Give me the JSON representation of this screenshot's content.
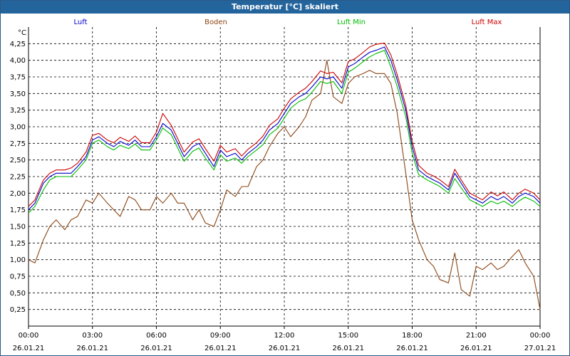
{
  "window": {
    "title": "Temperatur [°C] skaliert"
  },
  "chart_data": {
    "type": "line",
    "unit_label": "°C",
    "ylim": [
      0,
      4.5
    ],
    "y_ticks": [
      "4,25",
      "4,00",
      "3,75",
      "3,50",
      "3,25",
      "3,00",
      "2,75",
      "2,50",
      "2,25",
      "2,00",
      "1,75",
      "1,50",
      "1,25",
      "1,00",
      "0,75",
      "0,50",
      "0,25"
    ],
    "y_tick_values": [
      4.25,
      4.0,
      3.75,
      3.5,
      3.25,
      3.0,
      2.75,
      2.5,
      2.25,
      2.0,
      1.75,
      1.5,
      1.25,
      1.0,
      0.75,
      0.5,
      0.25
    ],
    "xlim": [
      0,
      24
    ],
    "x_ticks": [
      {
        "x": 0,
        "time": "00:00",
        "date": "26.01.21"
      },
      {
        "x": 3,
        "time": "03:00",
        "date": "26.01.21"
      },
      {
        "x": 6,
        "time": "06:00",
        "date": "26.01.21"
      },
      {
        "x": 9,
        "time": "09:00",
        "date": "26.01.21"
      },
      {
        "x": 12,
        "time": "12:00",
        "date": "26.01.21"
      },
      {
        "x": 15,
        "time": "15:00",
        "date": "26.01.21"
      },
      {
        "x": 18,
        "time": "18:00",
        "date": "26.01.21"
      },
      {
        "x": 21,
        "time": "21:00",
        "date": "26.01.21"
      },
      {
        "x": 24,
        "time": "00:00",
        "date": "27.01.21"
      }
    ],
    "grid": true,
    "legend_position": "top",
    "series": [
      {
        "name": "Luft",
        "color": "#0000cc",
        "points": [
          [
            0.0,
            1.75
          ],
          [
            0.3,
            1.85
          ],
          [
            0.7,
            2.15
          ],
          [
            1.0,
            2.25
          ],
          [
            1.3,
            2.3
          ],
          [
            1.7,
            2.3
          ],
          [
            2.0,
            2.3
          ],
          [
            2.3,
            2.4
          ],
          [
            2.7,
            2.55
          ],
          [
            3.0,
            2.8
          ],
          [
            3.3,
            2.85
          ],
          [
            3.7,
            2.75
          ],
          [
            4.0,
            2.7
          ],
          [
            4.3,
            2.78
          ],
          [
            4.7,
            2.72
          ],
          [
            5.0,
            2.8
          ],
          [
            5.3,
            2.7
          ],
          [
            5.7,
            2.7
          ],
          [
            6.0,
            2.85
          ],
          [
            6.3,
            3.05
          ],
          [
            6.7,
            2.95
          ],
          [
            7.0,
            2.75
          ],
          [
            7.3,
            2.55
          ],
          [
            7.7,
            2.7
          ],
          [
            8.0,
            2.75
          ],
          [
            8.3,
            2.6
          ],
          [
            8.7,
            2.4
          ],
          [
            9.0,
            2.65
          ],
          [
            9.3,
            2.55
          ],
          [
            9.7,
            2.6
          ],
          [
            10.0,
            2.5
          ],
          [
            10.3,
            2.6
          ],
          [
            10.7,
            2.7
          ],
          [
            11.0,
            2.8
          ],
          [
            11.3,
            2.95
          ],
          [
            11.7,
            3.05
          ],
          [
            12.0,
            3.2
          ],
          [
            12.3,
            3.35
          ],
          [
            12.7,
            3.45
          ],
          [
            13.0,
            3.5
          ],
          [
            13.3,
            3.6
          ],
          [
            13.7,
            3.75
          ],
          [
            14.0,
            3.72
          ],
          [
            14.3,
            3.75
          ],
          [
            14.7,
            3.58
          ],
          [
            15.0,
            3.9
          ],
          [
            15.3,
            3.95
          ],
          [
            15.7,
            4.05
          ],
          [
            16.0,
            4.12
          ],
          [
            16.3,
            4.15
          ],
          [
            16.7,
            4.2
          ],
          [
            17.0,
            4.0
          ],
          [
            17.3,
            3.7
          ],
          [
            17.7,
            3.25
          ],
          [
            18.0,
            2.7
          ],
          [
            18.3,
            2.35
          ],
          [
            18.7,
            2.25
          ],
          [
            19.0,
            2.2
          ],
          [
            19.3,
            2.15
          ],
          [
            19.7,
            2.05
          ],
          [
            20.0,
            2.3
          ],
          [
            20.3,
            2.15
          ],
          [
            20.7,
            1.95
          ],
          [
            21.0,
            1.9
          ],
          [
            21.3,
            1.85
          ],
          [
            21.7,
            1.95
          ],
          [
            22.0,
            1.9
          ],
          [
            22.3,
            1.95
          ],
          [
            22.7,
            1.85
          ],
          [
            23.0,
            1.95
          ],
          [
            23.3,
            2.0
          ],
          [
            23.7,
            1.95
          ],
          [
            24.0,
            1.85
          ]
        ]
      },
      {
        "name": "Boden",
        "color": "#8b4513",
        "points": [
          [
            0.0,
            1.0
          ],
          [
            0.3,
            0.95
          ],
          [
            0.7,
            1.3
          ],
          [
            1.0,
            1.5
          ],
          [
            1.3,
            1.6
          ],
          [
            1.7,
            1.45
          ],
          [
            2.0,
            1.6
          ],
          [
            2.3,
            1.65
          ],
          [
            2.7,
            1.9
          ],
          [
            3.0,
            1.85
          ],
          [
            3.3,
            2.0
          ],
          [
            3.7,
            1.85
          ],
          [
            4.0,
            1.75
          ],
          [
            4.3,
            1.65
          ],
          [
            4.7,
            1.95
          ],
          [
            5.0,
            1.9
          ],
          [
            5.3,
            1.75
          ],
          [
            5.7,
            1.75
          ],
          [
            6.0,
            1.95
          ],
          [
            6.3,
            1.85
          ],
          [
            6.7,
            2.0
          ],
          [
            7.0,
            1.85
          ],
          [
            7.3,
            1.85
          ],
          [
            7.7,
            1.6
          ],
          [
            8.0,
            1.75
          ],
          [
            8.3,
            1.55
          ],
          [
            8.7,
            1.5
          ],
          [
            9.0,
            1.75
          ],
          [
            9.3,
            2.05
          ],
          [
            9.7,
            1.95
          ],
          [
            10.0,
            2.1
          ],
          [
            10.3,
            2.1
          ],
          [
            10.7,
            2.4
          ],
          [
            11.0,
            2.5
          ],
          [
            11.3,
            2.7
          ],
          [
            11.7,
            2.9
          ],
          [
            12.0,
            3.0
          ],
          [
            12.3,
            2.85
          ],
          [
            12.7,
            3.0
          ],
          [
            13.0,
            3.15
          ],
          [
            13.3,
            3.4
          ],
          [
            13.7,
            3.5
          ],
          [
            14.0,
            4.0
          ],
          [
            14.3,
            3.45
          ],
          [
            14.7,
            3.35
          ],
          [
            15.0,
            3.65
          ],
          [
            15.3,
            3.75
          ],
          [
            15.7,
            3.8
          ],
          [
            16.0,
            3.85
          ],
          [
            16.3,
            3.8
          ],
          [
            16.7,
            3.8
          ],
          [
            17.0,
            3.65
          ],
          [
            17.3,
            3.2
          ],
          [
            17.7,
            2.3
          ],
          [
            18.0,
            1.6
          ],
          [
            18.3,
            1.3
          ],
          [
            18.7,
            1.0
          ],
          [
            19.0,
            0.9
          ],
          [
            19.3,
            0.7
          ],
          [
            19.7,
            0.65
          ],
          [
            20.0,
            1.1
          ],
          [
            20.3,
            0.55
          ],
          [
            20.7,
            0.45
          ],
          [
            21.0,
            0.9
          ],
          [
            21.3,
            0.85
          ],
          [
            21.7,
            0.95
          ],
          [
            22.0,
            0.85
          ],
          [
            22.3,
            0.9
          ],
          [
            22.7,
            1.05
          ],
          [
            23.0,
            1.15
          ],
          [
            23.3,
            0.95
          ],
          [
            23.7,
            0.75
          ],
          [
            24.0,
            0.25
          ]
        ]
      },
      {
        "name": "Luft Min",
        "color": "#00bb00",
        "points": [
          [
            0.0,
            1.7
          ],
          [
            0.3,
            1.8
          ],
          [
            0.7,
            2.05
          ],
          [
            1.0,
            2.2
          ],
          [
            1.3,
            2.25
          ],
          [
            1.7,
            2.25
          ],
          [
            2.0,
            2.25
          ],
          [
            2.3,
            2.35
          ],
          [
            2.7,
            2.5
          ],
          [
            3.0,
            2.75
          ],
          [
            3.3,
            2.8
          ],
          [
            3.7,
            2.7
          ],
          [
            4.0,
            2.65
          ],
          [
            4.3,
            2.72
          ],
          [
            4.7,
            2.67
          ],
          [
            5.0,
            2.74
          ],
          [
            5.3,
            2.65
          ],
          [
            5.7,
            2.65
          ],
          [
            6.0,
            2.8
          ],
          [
            6.3,
            2.98
          ],
          [
            6.7,
            2.88
          ],
          [
            7.0,
            2.68
          ],
          [
            7.3,
            2.48
          ],
          [
            7.7,
            2.63
          ],
          [
            8.0,
            2.68
          ],
          [
            8.3,
            2.53
          ],
          [
            8.7,
            2.35
          ],
          [
            9.0,
            2.58
          ],
          [
            9.3,
            2.48
          ],
          [
            9.7,
            2.53
          ],
          [
            10.0,
            2.45
          ],
          [
            10.3,
            2.55
          ],
          [
            10.7,
            2.65
          ],
          [
            11.0,
            2.73
          ],
          [
            11.3,
            2.88
          ],
          [
            11.7,
            2.98
          ],
          [
            12.0,
            3.13
          ],
          [
            12.3,
            3.28
          ],
          [
            12.7,
            3.38
          ],
          [
            13.0,
            3.42
          ],
          [
            13.3,
            3.52
          ],
          [
            13.7,
            3.68
          ],
          [
            14.0,
            3.65
          ],
          [
            14.3,
            3.68
          ],
          [
            14.7,
            3.5
          ],
          [
            15.0,
            3.82
          ],
          [
            15.3,
            3.88
          ],
          [
            15.7,
            3.98
          ],
          [
            16.0,
            4.05
          ],
          [
            16.3,
            4.1
          ],
          [
            16.7,
            4.15
          ],
          [
            17.0,
            3.9
          ],
          [
            17.3,
            3.6
          ],
          [
            17.7,
            3.15
          ],
          [
            18.0,
            2.6
          ],
          [
            18.3,
            2.28
          ],
          [
            18.7,
            2.2
          ],
          [
            19.0,
            2.15
          ],
          [
            19.3,
            2.1
          ],
          [
            19.7,
            2.0
          ],
          [
            20.0,
            2.22
          ],
          [
            20.3,
            2.08
          ],
          [
            20.7,
            1.9
          ],
          [
            21.0,
            1.85
          ],
          [
            21.3,
            1.8
          ],
          [
            21.7,
            1.88
          ],
          [
            22.0,
            1.84
          ],
          [
            22.3,
            1.88
          ],
          [
            22.7,
            1.8
          ],
          [
            23.0,
            1.88
          ],
          [
            23.3,
            1.94
          ],
          [
            23.7,
            1.88
          ],
          [
            24.0,
            1.8
          ]
        ]
      },
      {
        "name": "Luft Max",
        "color": "#cc0000",
        "points": [
          [
            0.0,
            1.8
          ],
          [
            0.3,
            1.9
          ],
          [
            0.7,
            2.2
          ],
          [
            1.0,
            2.3
          ],
          [
            1.3,
            2.35
          ],
          [
            1.7,
            2.35
          ],
          [
            2.0,
            2.38
          ],
          [
            2.3,
            2.45
          ],
          [
            2.7,
            2.62
          ],
          [
            3.0,
            2.87
          ],
          [
            3.3,
            2.9
          ],
          [
            3.7,
            2.8
          ],
          [
            4.0,
            2.76
          ],
          [
            4.3,
            2.84
          ],
          [
            4.7,
            2.78
          ],
          [
            5.0,
            2.86
          ],
          [
            5.3,
            2.76
          ],
          [
            5.7,
            2.76
          ],
          [
            6.0,
            2.92
          ],
          [
            6.3,
            3.2
          ],
          [
            6.7,
            3.02
          ],
          [
            7.0,
            2.82
          ],
          [
            7.3,
            2.62
          ],
          [
            7.7,
            2.77
          ],
          [
            8.0,
            2.82
          ],
          [
            8.3,
            2.67
          ],
          [
            8.7,
            2.48
          ],
          [
            9.0,
            2.72
          ],
          [
            9.3,
            2.62
          ],
          [
            9.7,
            2.67
          ],
          [
            10.0,
            2.56
          ],
          [
            10.3,
            2.66
          ],
          [
            10.7,
            2.76
          ],
          [
            11.0,
            2.86
          ],
          [
            11.3,
            3.02
          ],
          [
            11.7,
            3.12
          ],
          [
            12.0,
            3.28
          ],
          [
            12.3,
            3.42
          ],
          [
            12.7,
            3.52
          ],
          [
            13.0,
            3.58
          ],
          [
            13.3,
            3.68
          ],
          [
            13.7,
            3.84
          ],
          [
            14.0,
            3.8
          ],
          [
            14.3,
            3.82
          ],
          [
            14.7,
            3.66
          ],
          [
            15.0,
            3.98
          ],
          [
            15.3,
            4.02
          ],
          [
            15.7,
            4.12
          ],
          [
            16.0,
            4.2
          ],
          [
            16.3,
            4.24
          ],
          [
            16.7,
            4.26
          ],
          [
            17.0,
            4.08
          ],
          [
            17.3,
            3.78
          ],
          [
            17.7,
            3.32
          ],
          [
            18.0,
            2.78
          ],
          [
            18.3,
            2.42
          ],
          [
            18.7,
            2.3
          ],
          [
            19.0,
            2.26
          ],
          [
            19.3,
            2.2
          ],
          [
            19.7,
            2.1
          ],
          [
            20.0,
            2.36
          ],
          [
            20.3,
            2.2
          ],
          [
            20.7,
            2.0
          ],
          [
            21.0,
            1.95
          ],
          [
            21.3,
            1.9
          ],
          [
            21.7,
            2.02
          ],
          [
            22.0,
            1.96
          ],
          [
            22.3,
            2.02
          ],
          [
            22.7,
            1.9
          ],
          [
            23.0,
            2.0
          ],
          [
            23.3,
            2.06
          ],
          [
            23.7,
            2.0
          ],
          [
            24.0,
            1.9
          ]
        ]
      }
    ]
  }
}
